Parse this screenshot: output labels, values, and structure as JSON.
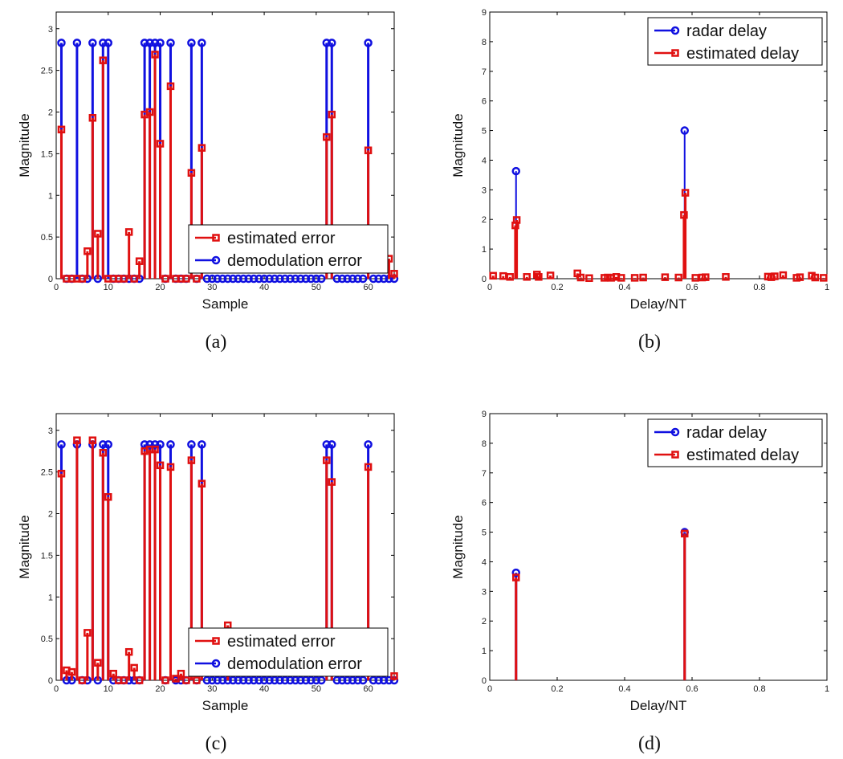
{
  "chart_data": [
    {
      "id": "a",
      "type": "stem",
      "caption": "(a)",
      "xlabel": "Sample",
      "ylabel": "Magnitude",
      "xlim": [
        0,
        65
      ],
      "ylim": [
        0,
        3.2
      ],
      "xticks": [
        0,
        10,
        20,
        30,
        40,
        50,
        60
      ],
      "yticks": [
        0,
        0.5,
        1,
        1.5,
        2,
        2.5,
        3
      ],
      "legend_position": "bottom-right",
      "series": [
        {
          "name": "estimated error",
          "color": "#e01010",
          "marker": "square",
          "points": [
            [
              1,
              1.79
            ],
            [
              2,
              0
            ],
            [
              3,
              0
            ],
            [
              4,
              0
            ],
            [
              5,
              0
            ],
            [
              6,
              0.33
            ],
            [
              7,
              1.93
            ],
            [
              8,
              0.54
            ],
            [
              9,
              2.62
            ],
            [
              10,
              0
            ],
            [
              11,
              0
            ],
            [
              12,
              0
            ],
            [
              13,
              0
            ],
            [
              14,
              0.56
            ],
            [
              15,
              0
            ],
            [
              16,
              0.21
            ],
            [
              17,
              1.97
            ],
            [
              18,
              2.0
            ],
            [
              19,
              2.69
            ],
            [
              20,
              1.62
            ],
            [
              21,
              0
            ],
            [
              22,
              2.31
            ],
            [
              23,
              0
            ],
            [
              24,
              0
            ],
            [
              25,
              0
            ],
            [
              26,
              1.27
            ],
            [
              27,
              0
            ],
            [
              28,
              1.57
            ],
            [
              52,
              1.7
            ],
            [
              53,
              1.97
            ],
            [
              60,
              1.54
            ],
            [
              64,
              0.24
            ],
            [
              65,
              0.06
            ]
          ]
        },
        {
          "name": "demodulation error",
          "color": "#1010e0",
          "marker": "circle",
          "nonzero": {
            "x": [
              1,
              4,
              7,
              9,
              10,
              17,
              18,
              19,
              20,
              22,
              26,
              28,
              52,
              53,
              60
            ],
            "value": 2.83
          },
          "xrange": [
            1,
            65
          ]
        }
      ]
    },
    {
      "id": "b",
      "type": "stem",
      "caption": "(b)",
      "xlabel": "Delay/NT",
      "ylabel": "Magnitude",
      "xlim": [
        0,
        1
      ],
      "ylim": [
        0,
        9
      ],
      "xticks": [
        0,
        0.2,
        0.4,
        0.6,
        0.8,
        1
      ],
      "yticks": [
        0,
        1,
        2,
        3,
        4,
        5,
        6,
        7,
        8,
        9
      ],
      "legend_position": "top-right",
      "series": [
        {
          "name": "radar delay",
          "color": "#1010e0",
          "marker": "circle",
          "points": [
            [
              0.078,
              3.63
            ],
            [
              0.578,
              5.0
            ]
          ]
        },
        {
          "name": "estimated delay",
          "color": "#e01010",
          "marker": "square",
          "points": [
            [
              0.01,
              0.1
            ],
            [
              0.04,
              0.09
            ],
            [
              0.06,
              0.06
            ],
            [
              0.076,
              1.8
            ],
            [
              0.08,
              1.98
            ],
            [
              0.11,
              0.06
            ],
            [
              0.14,
              0.14
            ],
            [
              0.145,
              0.06
            ],
            [
              0.18,
              0.11
            ],
            [
              0.26,
              0.18
            ],
            [
              0.27,
              0.04
            ],
            [
              0.295,
              0.02
            ],
            [
              0.34,
              0.03
            ],
            [
              0.35,
              0.04
            ],
            [
              0.36,
              0.03
            ],
            [
              0.375,
              0.06
            ],
            [
              0.39,
              0.03
            ],
            [
              0.43,
              0.03
            ],
            [
              0.455,
              0.04
            ],
            [
              0.52,
              0.05
            ],
            [
              0.56,
              0.04
            ],
            [
              0.576,
              2.15
            ],
            [
              0.58,
              2.9
            ],
            [
              0.61,
              0.03
            ],
            [
              0.63,
              0.04
            ],
            [
              0.64,
              0.05
            ],
            [
              0.7,
              0.06
            ],
            [
              0.825,
              0.07
            ],
            [
              0.835,
              0.05
            ],
            [
              0.845,
              0.08
            ],
            [
              0.87,
              0.12
            ],
            [
              0.91,
              0.03
            ],
            [
              0.92,
              0.05
            ],
            [
              0.955,
              0.1
            ],
            [
              0.965,
              0.04
            ],
            [
              0.99,
              0.03
            ]
          ]
        }
      ]
    },
    {
      "id": "c",
      "type": "stem",
      "caption": "(c)",
      "xlabel": "Sample",
      "ylabel": "Magnitude",
      "xlim": [
        0,
        65
      ],
      "ylim": [
        0,
        3.2
      ],
      "xticks": [
        0,
        10,
        20,
        30,
        40,
        50,
        60
      ],
      "yticks": [
        0,
        0.5,
        1,
        1.5,
        2,
        2.5,
        3
      ],
      "legend_position": "bottom-right",
      "series": [
        {
          "name": "estimated error",
          "color": "#e01010",
          "marker": "square",
          "points": [
            [
              1,
              2.48
            ],
            [
              2,
              0.12
            ],
            [
              3,
              0.1
            ],
            [
              4,
              2.88
            ],
            [
              5,
              0
            ],
            [
              6,
              0.57
            ],
            [
              7,
              2.88
            ],
            [
              8,
              0.21
            ],
            [
              9,
              2.73
            ],
            [
              10,
              2.2
            ],
            [
              11,
              0.08
            ],
            [
              12,
              0
            ],
            [
              13,
              0
            ],
            [
              14,
              0.34
            ],
            [
              15,
              0.15
            ],
            [
              16,
              0
            ],
            [
              17,
              2.75
            ],
            [
              18,
              2.77
            ],
            [
              19,
              2.77
            ],
            [
              20,
              2.58
            ],
            [
              21,
              0
            ],
            [
              22,
              2.56
            ],
            [
              23,
              0.02
            ],
            [
              24,
              0.08
            ],
            [
              25,
              0
            ],
            [
              26,
              2.64
            ],
            [
              27,
              0
            ],
            [
              28,
              2.36
            ],
            [
              33,
              0.66
            ],
            [
              52,
              2.64
            ],
            [
              53,
              2.38
            ],
            [
              60,
              2.56
            ],
            [
              65,
              0.05
            ]
          ]
        },
        {
          "name": "demodulation error",
          "color": "#1010e0",
          "marker": "circle",
          "nonzero": {
            "x": [
              1,
              4,
              7,
              9,
              10,
              17,
              18,
              19,
              20,
              22,
              26,
              28,
              52,
              53,
              60
            ],
            "value": 2.83
          },
          "xrange": [
            1,
            65
          ]
        }
      ]
    },
    {
      "id": "d",
      "type": "stem",
      "caption": "(d)",
      "xlabel": "Delay/NT",
      "ylabel": "Magnitude",
      "xlim": [
        0,
        1
      ],
      "ylim": [
        0,
        9
      ],
      "xticks": [
        0,
        0.2,
        0.4,
        0.6,
        0.8,
        1
      ],
      "yticks": [
        0,
        1,
        2,
        3,
        4,
        5,
        6,
        7,
        8,
        9
      ],
      "legend_position": "top-right",
      "series": [
        {
          "name": "radar delay",
          "color": "#1010e0",
          "marker": "circle",
          "points": [
            [
              0.078,
              3.63
            ],
            [
              0.578,
              5.0
            ]
          ]
        },
        {
          "name": "estimated delay",
          "color": "#e01010",
          "marker": "square",
          "points": [
            [
              0.078,
              3.47
            ],
            [
              0.578,
              4.95
            ]
          ]
        }
      ]
    }
  ]
}
